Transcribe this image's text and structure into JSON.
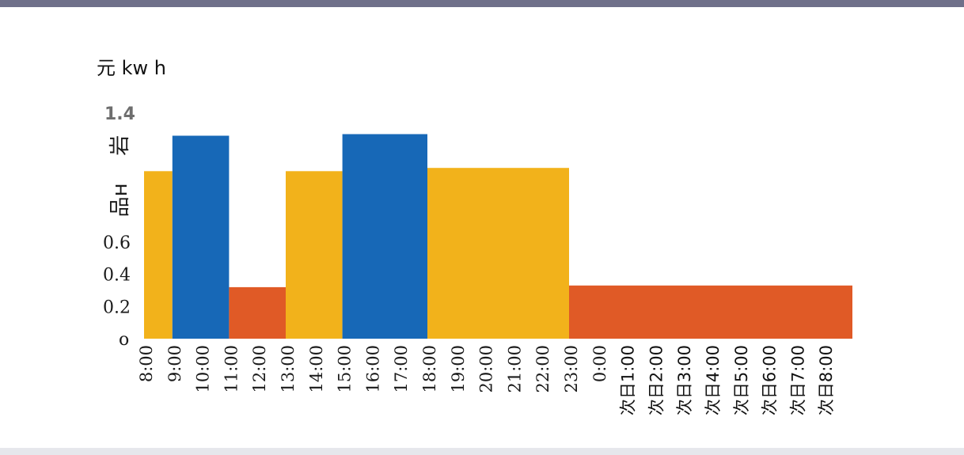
{
  "unit_label": "元 kw h",
  "chart_data": {
    "type": "bar",
    "ylim": [
      0,
      1.4
    ],
    "yticks": [
      {
        "value": 0,
        "label": "o"
      },
      {
        "value": 0.2,
        "label": "0.2"
      },
      {
        "value": 0.4,
        "label": "0.4"
      },
      {
        "value": 0.6,
        "label": "0.6"
      },
      {
        "value": 0.86,
        "label": "品н"
      },
      {
        "value": 1.2,
        "label": "岩"
      },
      {
        "value": 1.4,
        "label": "1.4"
      }
    ],
    "categories": [
      "8:00",
      "9:00",
      "10:00",
      "11:00",
      "12:00",
      "13:00",
      "14:00",
      "15:00",
      "16:00",
      "17:00",
      "18:00",
      "19:00",
      "20:00",
      "21:00",
      "22:00",
      "23:00",
      "0:00",
      "次日1:00",
      "次日2:00",
      "次日3:00",
      "次日4:00",
      "次日5:00",
      "次日6:00",
      "次日7:00",
      "次日8:00"
    ],
    "bars": [
      {
        "start": 0.0,
        "end": 1.0,
        "value": 1.04,
        "color": "#f2b21b"
      },
      {
        "start": 1.0,
        "end": 3.0,
        "value": 1.26,
        "color": "#1768b7"
      },
      {
        "start": 3.0,
        "end": 5.0,
        "value": 0.32,
        "color": "#e05a26"
      },
      {
        "start": 5.0,
        "end": 7.0,
        "value": 1.04,
        "color": "#f2b21b"
      },
      {
        "start": 7.0,
        "end": 10.0,
        "value": 1.27,
        "color": "#1768b7"
      },
      {
        "start": 10.0,
        "end": 15.0,
        "value": 1.06,
        "color": "#f2b21b"
      },
      {
        "start": 15.0,
        "end": 25.0,
        "value": 0.33,
        "color": "#e05a26"
      }
    ],
    "colors": {
      "peak": "#1768b7",
      "flat": "#f2b21b",
      "valley": "#e05a26"
    },
    "grid": false,
    "legend": "none",
    "title": "",
    "xlabel": "",
    "ylabel": ""
  }
}
